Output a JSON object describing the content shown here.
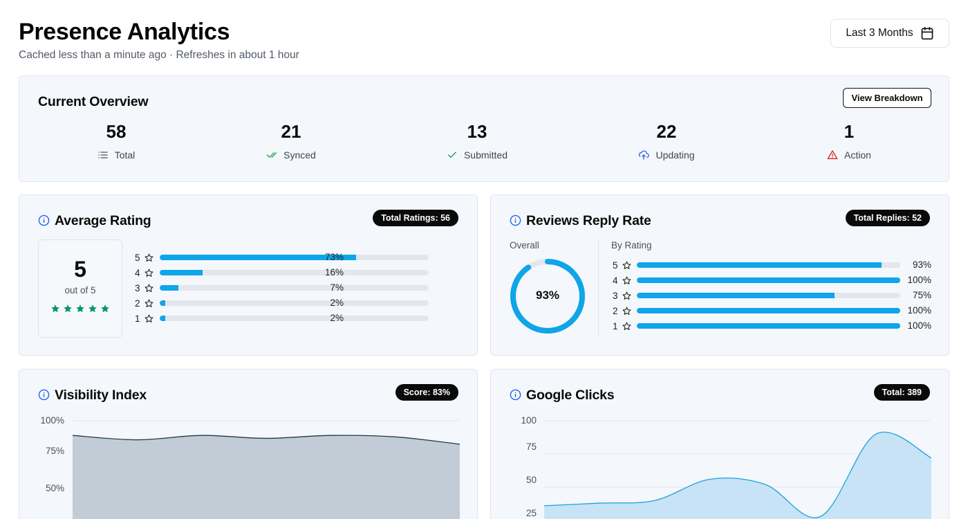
{
  "header": {
    "title": "Presence Analytics",
    "subtitle": "Cached less than a minute ago · Refreshes in about 1 hour",
    "range_label": "Last 3 Months"
  },
  "overview": {
    "title": "Current Overview",
    "button_label": "View Breakdown",
    "stats": [
      {
        "value": "58",
        "label": "Total",
        "icon": "list-icon"
      },
      {
        "value": "21",
        "label": "Synced",
        "icon": "double-check-icon"
      },
      {
        "value": "13",
        "label": "Submitted",
        "icon": "check-icon"
      },
      {
        "value": "22",
        "label": "Updating",
        "icon": "cloud-upload-icon"
      },
      {
        "value": "1",
        "label": "Action",
        "icon": "warning-icon"
      }
    ]
  },
  "average_rating": {
    "title": "Average Rating",
    "badge": "Total Ratings: 56",
    "score": "5",
    "score_sub": "out of 5",
    "stars": 5,
    "rows": [
      {
        "rating": "5",
        "percent": 73,
        "label": "73%"
      },
      {
        "rating": "4",
        "percent": 16,
        "label": "16%"
      },
      {
        "rating": "3",
        "percent": 7,
        "label": "7%"
      },
      {
        "rating": "2",
        "percent": 2,
        "label": "2%"
      },
      {
        "rating": "1",
        "percent": 2,
        "label": "2%"
      }
    ]
  },
  "reply_rate": {
    "title": "Reviews Reply Rate",
    "badge": "Total Replies: 52",
    "overall_label": "Overall",
    "by_rating_label": "By Rating",
    "overall_value": 93,
    "overall_text": "93%",
    "rows": [
      {
        "rating": "5",
        "percent": 93,
        "label": "93%"
      },
      {
        "rating": "4",
        "percent": 100,
        "label": "100%"
      },
      {
        "rating": "3",
        "percent": 75,
        "label": "75%"
      },
      {
        "rating": "2",
        "percent": 100,
        "label": "100%"
      },
      {
        "rating": "1",
        "percent": 100,
        "label": "100%"
      }
    ]
  },
  "visibility": {
    "title": "Visibility Index",
    "badge": "Score: 83%"
  },
  "google_clicks": {
    "title": "Google Clicks",
    "badge": "Total: 389"
  },
  "colors": {
    "accent": "#0ea5e9",
    "success": "#16a34a",
    "danger": "#dc2626",
    "star": "#059669",
    "info": "#2563eb"
  },
  "chart_data": [
    {
      "type": "area",
      "title": "Visibility Index",
      "yticks": [
        "100%",
        "75%",
        "50%"
      ],
      "ylim": [
        0,
        100
      ],
      "x": [
        0,
        1,
        2,
        3,
        4,
        5,
        6
      ],
      "values": [
        90,
        87,
        90,
        88,
        90,
        89,
        84
      ]
    },
    {
      "type": "area",
      "title": "Google Clicks",
      "yticks": [
        "100",
        "75",
        "50",
        "25"
      ],
      "ylim": [
        0,
        100
      ],
      "x": [
        0,
        1,
        2,
        3,
        4,
        5,
        6,
        7
      ],
      "values": [
        36,
        38,
        40,
        56,
        52,
        28,
        90,
        72
      ]
    }
  ]
}
